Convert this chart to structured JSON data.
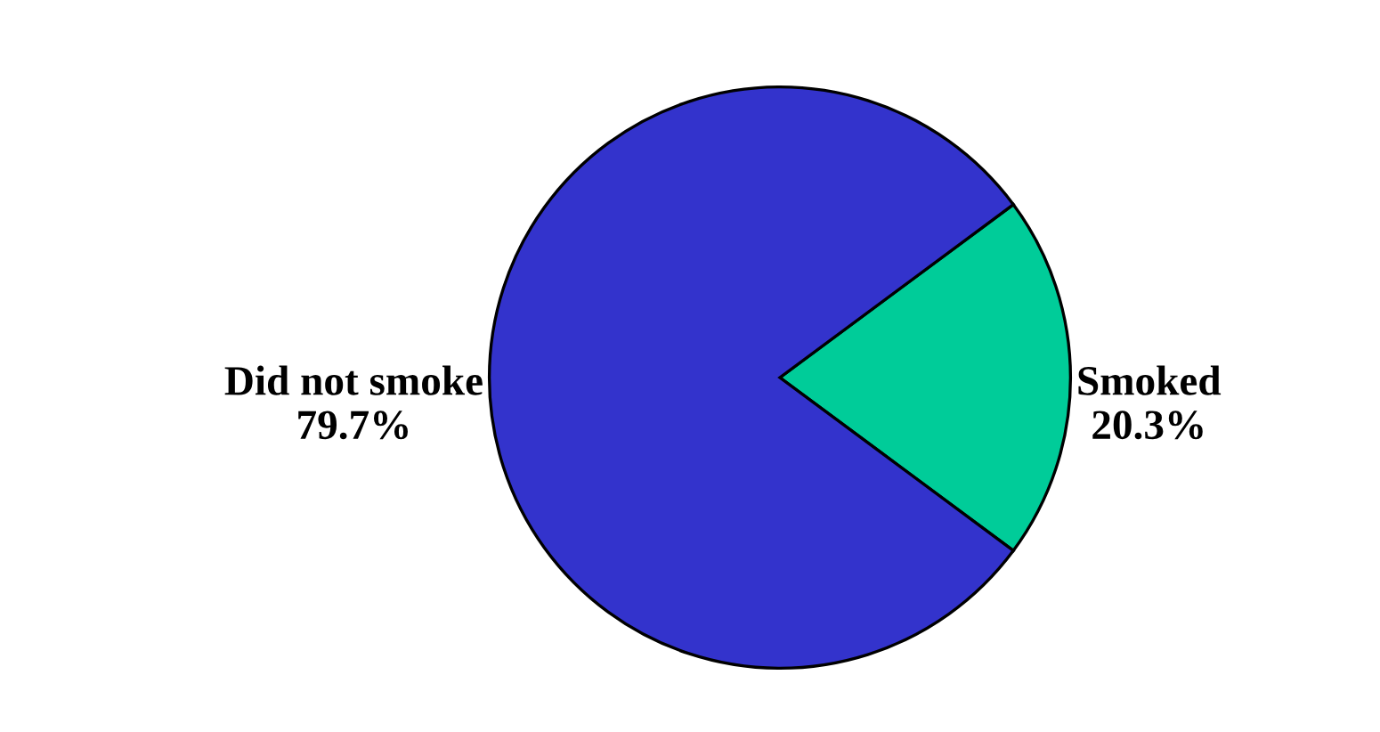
{
  "chart_data": {
    "type": "pie",
    "categories": [
      "Smoked",
      "Did not smoke"
    ],
    "values": [
      20.3,
      79.7
    ],
    "colors": [
      "#00cc99",
      "#3333cc"
    ],
    "value_labels": [
      "20.3%",
      "79.7%"
    ],
    "legend": false
  }
}
